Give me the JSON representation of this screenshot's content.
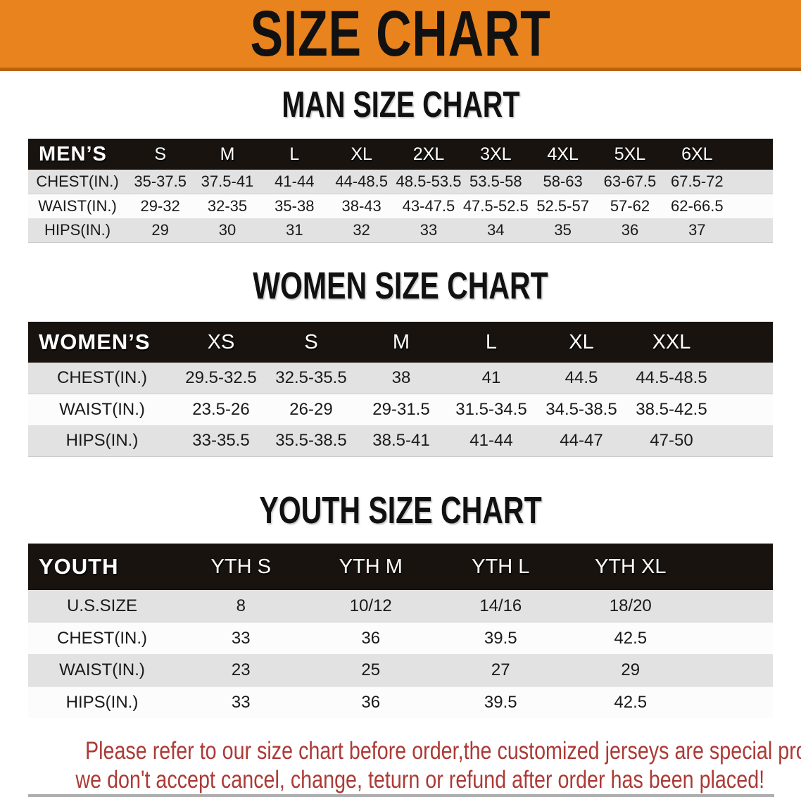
{
  "banner": {
    "title": "SIZE CHART"
  },
  "colors": {
    "banner_orange": "#E8831E",
    "banner_edge": "#BA6310",
    "bar_black": "#18130F",
    "row_gray": "#E2E2E2",
    "row_white": "#FCFCFC",
    "title_black": "#111111",
    "disclaimer_red": "#AC3A36"
  },
  "sections": [
    {
      "id": "men",
      "title": "MAN SIZE CHART",
      "header_label": "MEN’S",
      "columns": [
        "S",
        "M",
        "L",
        "XL",
        "2XL",
        "3XL",
        "4XL",
        "5XL",
        "6XL"
      ],
      "rows": [
        {
          "label": "CHEST(IN.)",
          "values": [
            "35-37.5",
            "37.5-41",
            "41-44",
            "44-48.5",
            "48.5-53.5",
            "53.5-58",
            "58-63",
            "63-67.5",
            "67.5-72"
          ]
        },
        {
          "label": "WAIST(IN.)",
          "values": [
            "29-32",
            "32-35",
            "35-38",
            "38-43",
            "43-47.5",
            "47.5-52.5",
            "52.5-57",
            "57-62",
            "62-66.5"
          ]
        },
        {
          "label": "HIPS(IN.)",
          "values": [
            "29",
            "30",
            "31",
            "32",
            "33",
            "34",
            "35",
            "36",
            "37"
          ]
        }
      ]
    },
    {
      "id": "women",
      "title": "WOMEN SIZE CHART",
      "header_label": "WOMEN’S",
      "columns": [
        "XS",
        "S",
        "M",
        "L",
        "XL",
        "XXL"
      ],
      "rows": [
        {
          "label": "CHEST(IN.)",
          "values": [
            "29.5-32.5",
            "32.5-35.5",
            "38",
            "41",
            "44.5",
            "44.5-48.5"
          ]
        },
        {
          "label": "WAIST(IN.)",
          "values": [
            "23.5-26",
            "26-29",
            "29-31.5",
            "31.5-34.5",
            "34.5-38.5",
            "38.5-42.5"
          ]
        },
        {
          "label": "HIPS(IN.)",
          "values": [
            "33-35.5",
            "35.5-38.5",
            "38.5-41",
            "41-44",
            "44-47",
            "47-50"
          ]
        }
      ]
    },
    {
      "id": "youth",
      "title": "YOUTH SIZE CHART",
      "header_label": "YOUTH",
      "columns": [
        "YTH S",
        "YTH M",
        "YTH L",
        "YTH XL"
      ],
      "rows": [
        {
          "label": "U.S.SIZE",
          "values": [
            "8",
            "10/12",
            "14/16",
            "18/20"
          ]
        },
        {
          "label": "CHEST(IN.)",
          "values": [
            "33",
            "36",
            "39.5",
            "42.5"
          ]
        },
        {
          "label": "WAIST(IN.)",
          "values": [
            "23",
            "25",
            "27",
            "29"
          ]
        },
        {
          "label": "HIPS(IN.)",
          "values": [
            "33",
            "36",
            "39.5",
            "42.5"
          ]
        }
      ]
    }
  ],
  "disclaimer": {
    "line1": "Please refer to our size chart before order,the customized jerseys are special products,",
    "line2": "we don't accept cancel, change, teturn or refund after order has been placed!"
  }
}
